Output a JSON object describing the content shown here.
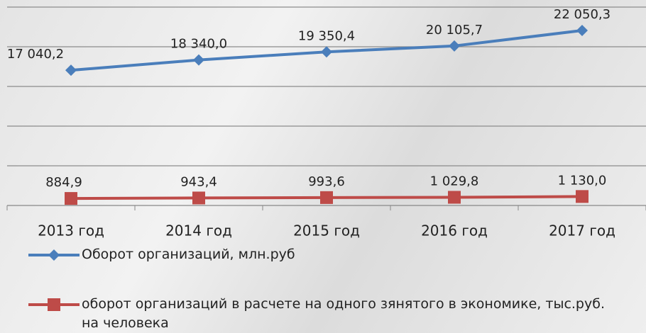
{
  "chart_data": {
    "type": "line",
    "categories": [
      "2013 год",
      "2014 год",
      "2015 год",
      "2016 год",
      "2017 год"
    ],
    "series": [
      {
        "name": "Оборот организаций, млн.руб",
        "color": "#4a7ebb",
        "marker": "diamond",
        "values": [
          17040.2,
          18340.0,
          19350.4,
          20105.7,
          22050.3
        ],
        "value_labels": [
          "17 040,2",
          "18 340,0",
          "19 350,4",
          "20 105,7",
          "22 050,3"
        ]
      },
      {
        "name": "оборот организаций в расчете на одного зянятого в экономике, тыс.руб. на человека",
        "color": "#be4b48",
        "marker": "square",
        "values": [
          884.9,
          943.4,
          993.6,
          1029.8,
          1130.0
        ],
        "value_labels": [
          "884,9",
          "943,4",
          "993,6",
          "1 029,8",
          "1 130,0"
        ]
      }
    ],
    "ylim": [
      0,
      25000
    ],
    "yticks": [
      0,
      5000,
      10000,
      15000,
      20000,
      25000
    ],
    "grid": true
  }
}
